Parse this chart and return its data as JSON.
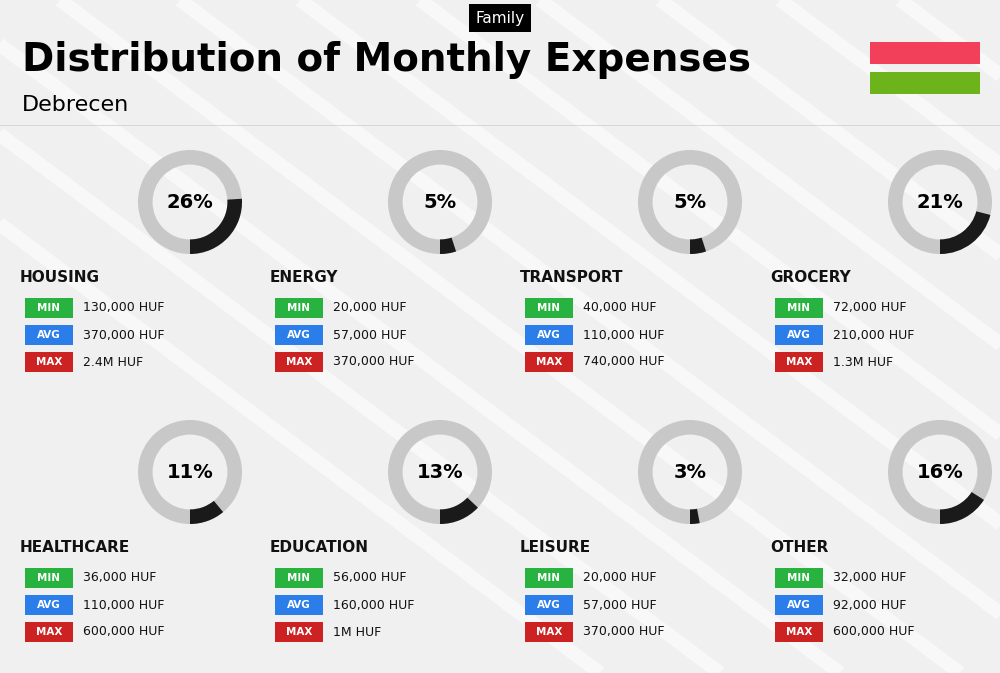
{
  "title": "Distribution of Monthly Expenses",
  "subtitle": "Debrecen",
  "tag": "Family",
  "background_color": "#f0f0f0",
  "flag_red": "#f23f5a",
  "flag_green": "#6db31b",
  "categories": [
    {
      "name": "HOUSING",
      "percent": 26,
      "min_val": "130,000 HUF",
      "avg_val": "370,000 HUF",
      "max_val": "2.4M HUF",
      "row": 0,
      "col": 0
    },
    {
      "name": "ENERGY",
      "percent": 5,
      "min_val": "20,000 HUF",
      "avg_val": "57,000 HUF",
      "max_val": "370,000 HUF",
      "row": 0,
      "col": 1
    },
    {
      "name": "TRANSPORT",
      "percent": 5,
      "min_val": "40,000 HUF",
      "avg_val": "110,000 HUF",
      "max_val": "740,000 HUF",
      "row": 0,
      "col": 2
    },
    {
      "name": "GROCERY",
      "percent": 21,
      "min_val": "72,000 HUF",
      "avg_val": "210,000 HUF",
      "max_val": "1.3M HUF",
      "row": 0,
      "col": 3
    },
    {
      "name": "HEALTHCARE",
      "percent": 11,
      "min_val": "36,000 HUF",
      "avg_val": "110,000 HUF",
      "max_val": "600,000 HUF",
      "row": 1,
      "col": 0
    },
    {
      "name": "EDUCATION",
      "percent": 13,
      "min_val": "56,000 HUF",
      "avg_val": "160,000 HUF",
      "max_val": "1M HUF",
      "row": 1,
      "col": 1
    },
    {
      "name": "LEISURE",
      "percent": 3,
      "min_val": "20,000 HUF",
      "avg_val": "57,000 HUF",
      "max_val": "370,000 HUF",
      "row": 1,
      "col": 2
    },
    {
      "name": "OTHER",
      "percent": 16,
      "min_val": "32,000 HUF",
      "avg_val": "92,000 HUF",
      "max_val": "600,000 HUF",
      "row": 1,
      "col": 3
    }
  ],
  "min_color": "#28b340",
  "avg_color": "#2b7de9",
  "max_color": "#cc2222",
  "label_text_color": "#ffffff",
  "donut_filled_color": "#1a1a1a",
  "donut_empty_color": "#c8c8c8",
  "category_label_color": "#111111",
  "value_text_color": "#111111",
  "diag_line_color": "#e0e0e0"
}
